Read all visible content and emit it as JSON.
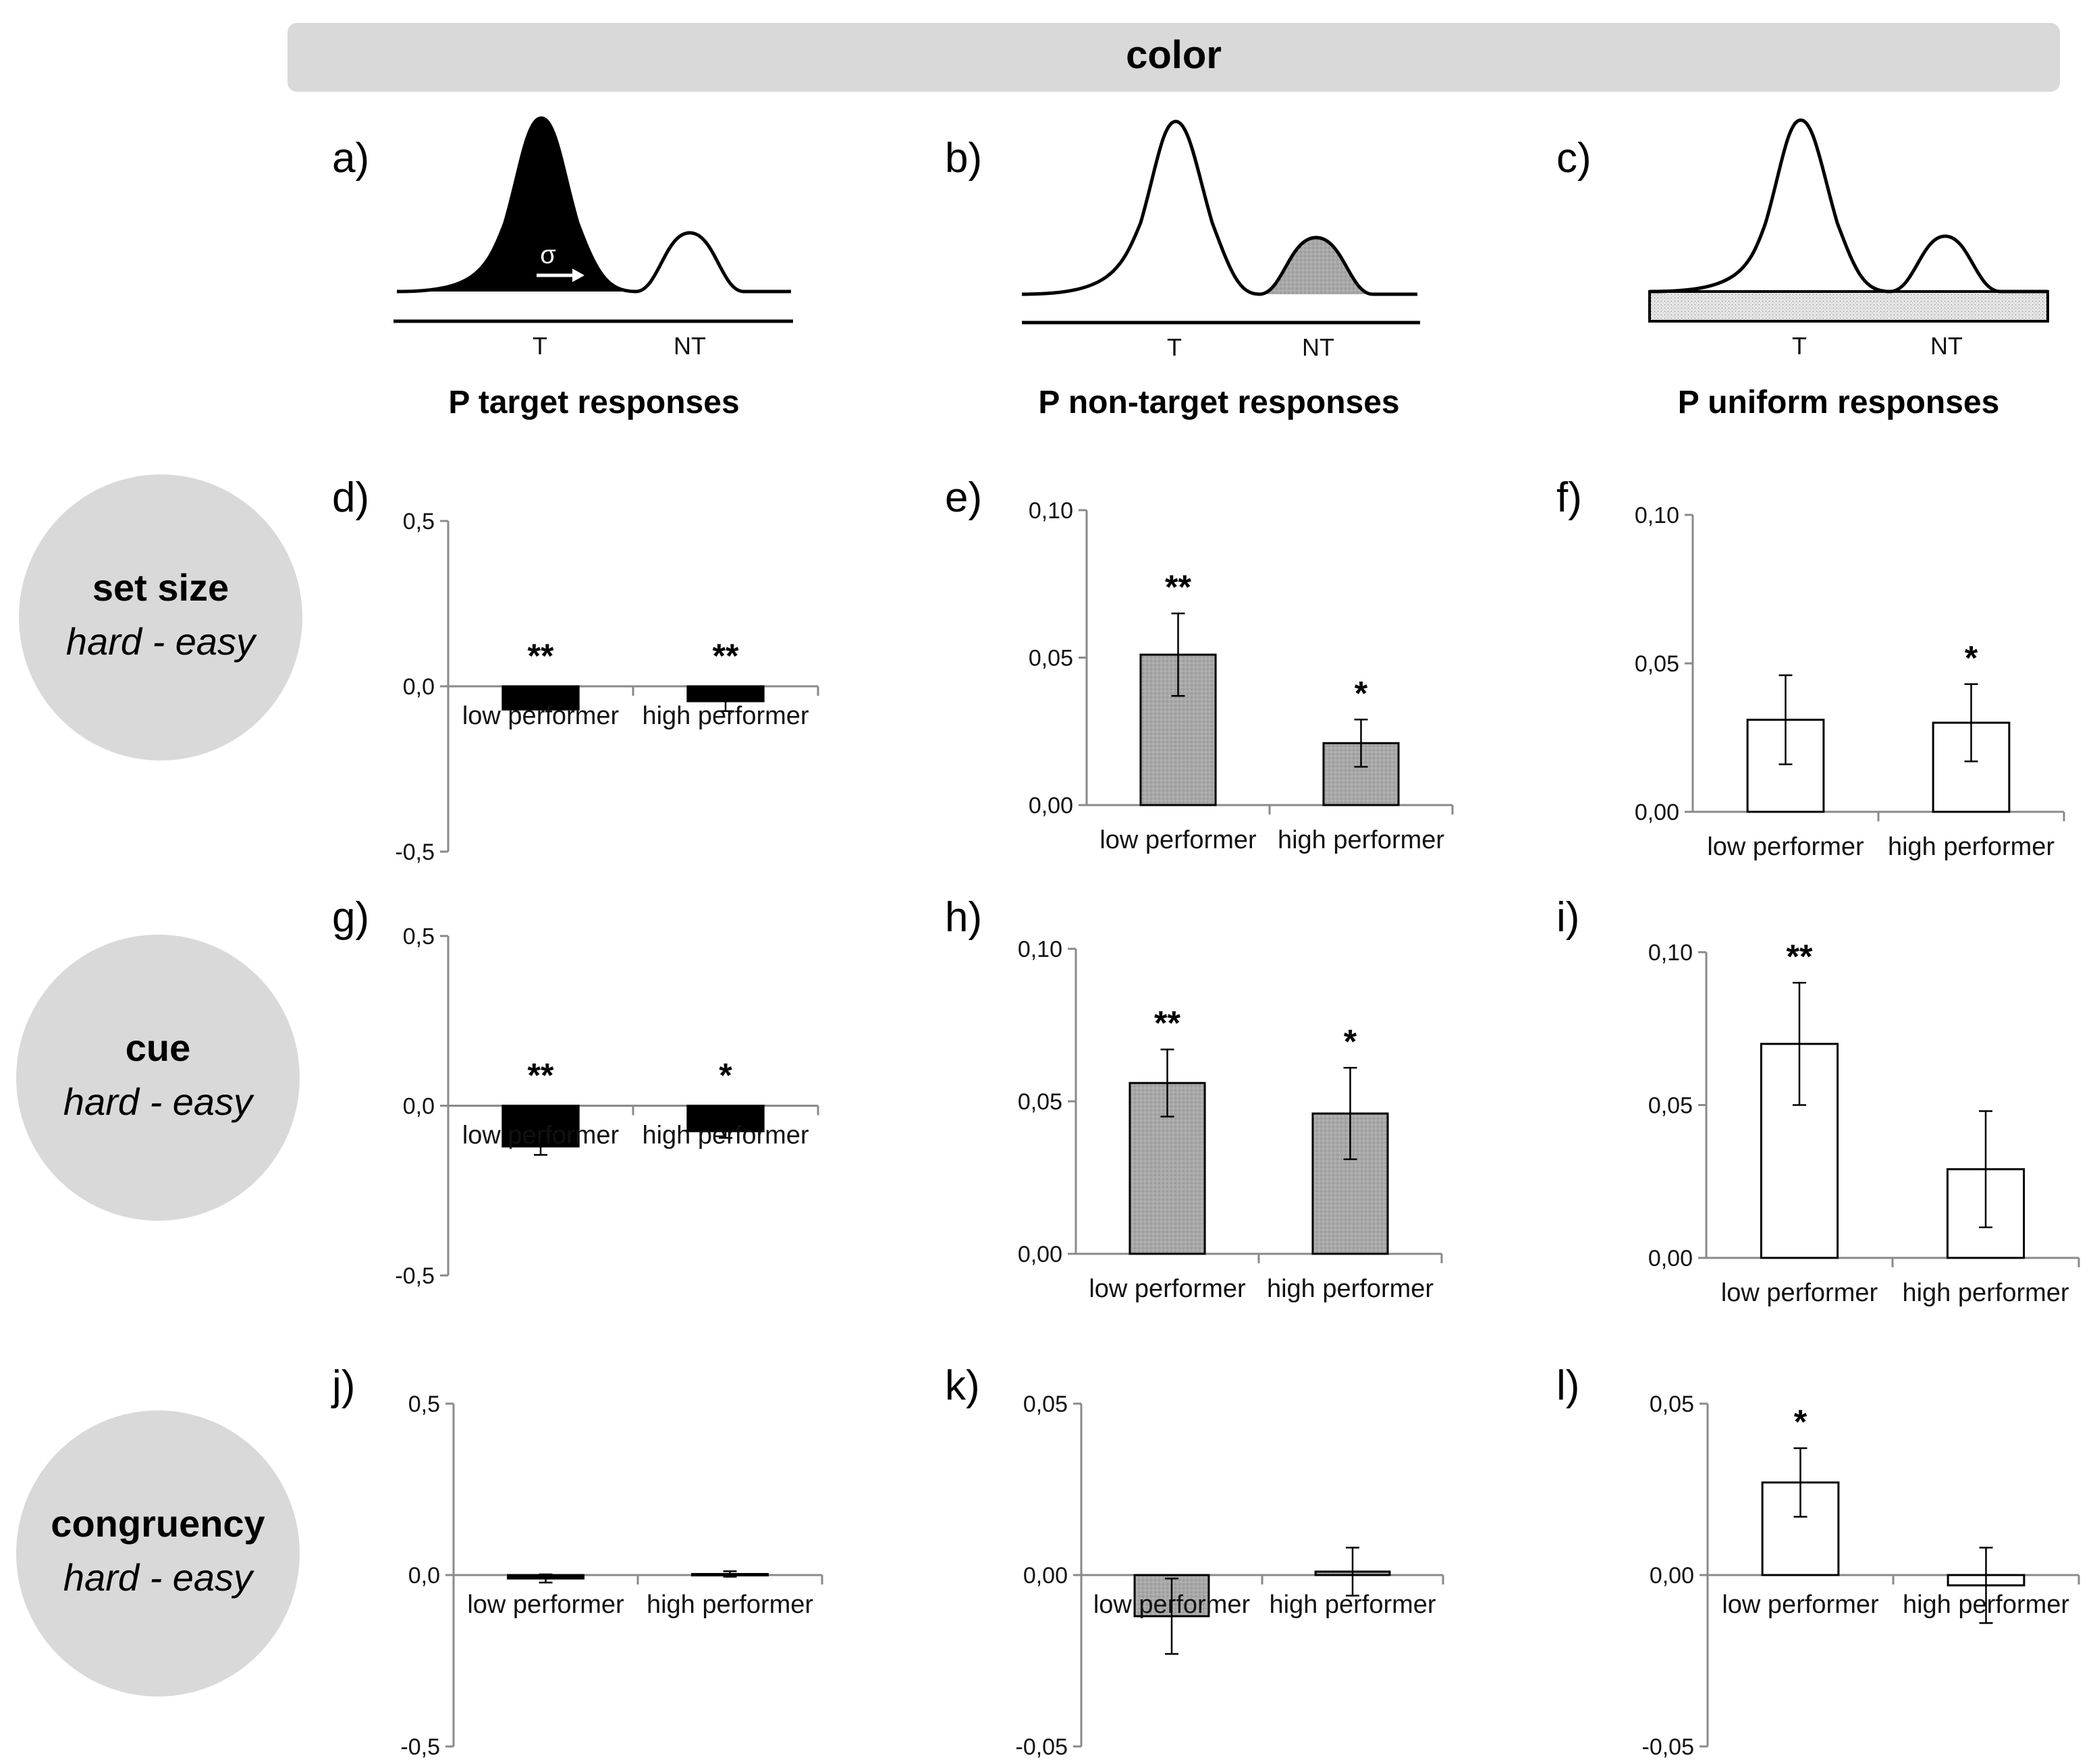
{
  "header": {
    "title": "color"
  },
  "row_labels": [
    {
      "main": "set size",
      "sub": "hard - easy"
    },
    {
      "main": "cue",
      "sub": "hard - easy"
    },
    {
      "main": "congruency",
      "sub": "hard - easy"
    }
  ],
  "distributions": [
    {
      "letter": "a)",
      "caption": "P target responses",
      "t_label": "T",
      "nt_label": "NT",
      "sigma": "σ"
    },
    {
      "letter": "b)",
      "caption": "P non-target responses",
      "t_label": "T",
      "nt_label": "NT"
    },
    {
      "letter": "c)",
      "caption": "P uniform responses",
      "t_label": "T",
      "nt_label": "NT"
    }
  ],
  "colors": {
    "target": "#000000",
    "nontarget": "#a8a8a8",
    "uniform": "#ffffff",
    "header_bg": "#d9d9d9",
    "circle_bg": "#d9d9d9"
  },
  "chart_data": [
    {
      "letter": "d)",
      "type": "bar",
      "fill": "target",
      "categories": [
        "low performer",
        "high performer"
      ],
      "values": [
        -0.07,
        -0.045
      ],
      "errors": [
        0.0,
        0.03
      ],
      "stars": [
        "**",
        "**"
      ],
      "ylim": [
        -0.5,
        0.5
      ],
      "ticks": [
        0.5,
        0.0,
        -0.5
      ],
      "tick_labels": [
        "0,5",
        "0,0",
        "-0,5"
      ]
    },
    {
      "letter": "e)",
      "type": "bar",
      "fill": "nontarget",
      "categories": [
        "low performer",
        "high performer"
      ],
      "values": [
        0.051,
        0.021
      ],
      "errors": [
        0.014,
        0.008
      ],
      "stars": [
        "**",
        "*"
      ],
      "ylim": [
        0.0,
        0.1
      ],
      "ticks": [
        0.1,
        0.05,
        0.0
      ],
      "tick_labels": [
        "0,10",
        "0,05",
        "0,00"
      ]
    },
    {
      "letter": "f)",
      "type": "bar",
      "fill": "uniform",
      "categories": [
        "low performer",
        "high performer"
      ],
      "values": [
        0.031,
        0.03
      ],
      "errors": [
        0.015,
        0.013
      ],
      "stars": [
        "",
        "*"
      ],
      "ylim": [
        0.0,
        0.1
      ],
      "ticks": [
        0.1,
        0.05,
        0.0
      ],
      "tick_labels": [
        "0,10",
        "0,05",
        "0,00"
      ]
    },
    {
      "letter": "g)",
      "type": "bar",
      "fill": "target",
      "categories": [
        "low performer",
        "high performer"
      ],
      "values": [
        -0.12,
        -0.075
      ],
      "errors": [
        0.025,
        0.02
      ],
      "stars": [
        "**",
        "*"
      ],
      "ylim": [
        -0.5,
        0.5
      ],
      "ticks": [
        0.5,
        0.0,
        -0.5
      ],
      "tick_labels": [
        "0,5",
        "0,0",
        "-0,5"
      ]
    },
    {
      "letter": "h)",
      "type": "bar",
      "fill": "nontarget",
      "categories": [
        "low performer",
        "high performer"
      ],
      "values": [
        0.056,
        0.046
      ],
      "errors": [
        0.011,
        0.015
      ],
      "stars": [
        "**",
        "*"
      ],
      "ylim": [
        0.0,
        0.1
      ],
      "ticks": [
        0.1,
        0.05,
        0.0
      ],
      "tick_labels": [
        "0,10",
        "0,05",
        "0,00"
      ]
    },
    {
      "letter": "i)",
      "type": "bar",
      "fill": "uniform",
      "categories": [
        "low performer",
        "high performer"
      ],
      "values": [
        0.07,
        0.029
      ],
      "errors": [
        0.02,
        0.019
      ],
      "stars": [
        "**",
        ""
      ],
      "ylim": [
        0.0,
        0.1
      ],
      "ticks": [
        0.1,
        0.05,
        0.0
      ],
      "tick_labels": [
        "0,10",
        "0,05",
        "0,00"
      ]
    },
    {
      "letter": "j)",
      "type": "bar",
      "fill": "target",
      "categories": [
        "low performer",
        "high performer"
      ],
      "values": [
        -0.01,
        0.003
      ],
      "errors": [
        0.012,
        0.008
      ],
      "stars": [
        "",
        ""
      ],
      "ylim": [
        -0.5,
        0.5
      ],
      "ticks": [
        0.5,
        0.0,
        -0.5
      ],
      "tick_labels": [
        "0,5",
        "0,0",
        "-0,5"
      ]
    },
    {
      "letter": "k)",
      "type": "bar",
      "fill": "nontarget",
      "categories": [
        "low performer",
        "high performer"
      ],
      "values": [
        -0.012,
        0.001
      ],
      "errors": [
        0.011,
        0.007
      ],
      "stars": [
        "",
        ""
      ],
      "ylim": [
        -0.05,
        0.05
      ],
      "ticks": [
        0.05,
        0.0,
        -0.05
      ],
      "tick_labels": [
        "0,05",
        "0,00",
        "-0,05"
      ]
    },
    {
      "letter": "l)",
      "type": "bar",
      "fill": "uniform",
      "categories": [
        "low performer",
        "high performer"
      ],
      "values": [
        0.027,
        -0.003
      ],
      "errors": [
        0.01,
        0.011
      ],
      "stars": [
        "*",
        ""
      ],
      "ylim": [
        -0.05,
        0.05
      ],
      "ticks": [
        0.05,
        0.0,
        -0.05
      ],
      "tick_labels": [
        "0,05",
        "0,00",
        "-0,05"
      ]
    }
  ]
}
